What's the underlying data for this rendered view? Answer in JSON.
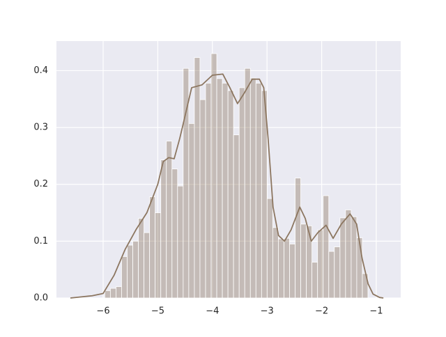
{
  "chart_data": {
    "type": "histogram",
    "bins": [
      -5.97,
      -5.868,
      -5.765,
      -5.663,
      -5.56,
      -5.458,
      -5.355,
      -5.253,
      -5.15,
      -5.048,
      -4.945,
      -4.843,
      -4.74,
      -4.638,
      -4.535,
      -4.433,
      -4.33,
      -4.228,
      -4.125,
      -4.023,
      -3.92,
      -3.818,
      -3.715,
      -3.613,
      -3.51,
      -3.408,
      -3.305,
      -3.203,
      -3.1,
      -2.998,
      -2.895,
      -2.793,
      -2.69,
      -2.588,
      -2.485,
      -2.383,
      -2.28,
      -2.178,
      -2.075,
      -1.973,
      -1.87,
      -1.768,
      -1.665,
      -1.563,
      -1.46,
      -1.358,
      -1.255,
      -1.153
    ],
    "values": [
      0.013,
      0.017,
      0.02,
      0.073,
      0.093,
      0.1,
      0.14,
      0.115,
      0.178,
      0.15,
      0.243,
      0.276,
      0.227,
      0.197,
      0.404,
      0.307,
      0.423,
      0.349,
      0.378,
      0.43,
      0.386,
      0.378,
      0.365,
      0.287,
      0.37,
      0.404,
      0.387,
      0.378,
      0.365,
      0.175,
      0.124,
      0.104,
      0.105,
      0.095,
      0.211,
      0.13,
      0.127,
      0.063,
      0.12,
      0.18,
      0.082,
      0.09,
      0.141,
      0.155,
      0.143,
      0.106,
      0.043
    ],
    "color": "#8c7660",
    "kde_x": [
      -6.6,
      -6.4,
      -6.2,
      -6.0,
      -5.8,
      -5.6,
      -5.4,
      -5.2,
      -5.0,
      -4.9,
      -4.8,
      -4.7,
      -4.6,
      -4.55,
      -4.38,
      -4.19,
      -4.0,
      -3.81,
      -3.68,
      -3.54,
      -3.42,
      -3.27,
      -3.14,
      -3.06,
      -2.98,
      -2.89,
      -2.79,
      -2.68,
      -2.56,
      -2.4,
      -2.3,
      -2.19,
      -2.07,
      -1.92,
      -1.79,
      -1.64,
      -1.48,
      -1.36,
      -1.26,
      -1.15,
      -1.06,
      -0.94,
      -0.87
    ],
    "kde_y": [
      0.0,
      0.002,
      0.004,
      0.008,
      0.04,
      0.085,
      0.12,
      0.15,
      0.2,
      0.24,
      0.247,
      0.245,
      0.28,
      0.3,
      0.37,
      0.375,
      0.392,
      0.394,
      0.37,
      0.342,
      0.36,
      0.385,
      0.385,
      0.37,
      0.28,
      0.16,
      0.11,
      0.1,
      0.12,
      0.16,
      0.14,
      0.1,
      0.115,
      0.128,
      0.105,
      0.13,
      0.148,
      0.13,
      0.07,
      0.025,
      0.007,
      0.001,
      0.0
    ],
    "xlim": [
      -6.855,
      -0.553
    ],
    "ylim": [
      0,
      0.452
    ],
    "xticks": [
      {
        "value": -6,
        "label": "−6"
      },
      {
        "value": -5,
        "label": "−5"
      },
      {
        "value": -4,
        "label": "−4"
      },
      {
        "value": -3,
        "label": "−3"
      },
      {
        "value": -2,
        "label": "−2"
      },
      {
        "value": -1,
        "label": "−1"
      }
    ],
    "yticks": [
      {
        "value": 0,
        "label": "0.0"
      },
      0.1,
      0.2,
      0.3,
      0.4
    ],
    "grid": true
  }
}
